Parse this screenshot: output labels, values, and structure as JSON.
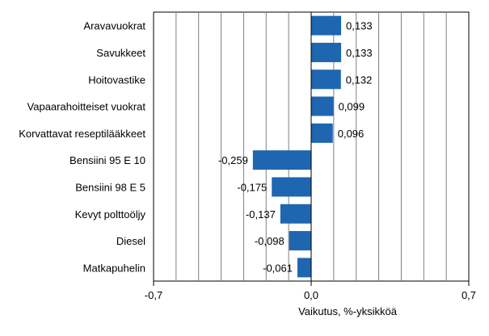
{
  "chart_data": {
    "type": "bar",
    "orientation": "horizontal",
    "categories": [
      "Aravavuokrat",
      "Savukkeet",
      "Hoitovastike",
      "Vapaarahoitteiset vuokrat",
      "Korvattavat reseptilääkkeet",
      "Bensiini 95 E 10",
      "Bensiini 98 E 5",
      "Kevyt polttoöljy",
      "Diesel",
      "Matkapuhelin"
    ],
    "values": [
      0.133,
      0.133,
      0.132,
      0.099,
      0.096,
      -0.259,
      -0.175,
      -0.137,
      -0.098,
      -0.061
    ],
    "value_labels": [
      "0,133",
      "0,133",
      "0,132",
      "0,099",
      "0,096",
      "-0,259",
      "-0,175",
      "-0,137",
      "-0,098",
      "-0,061"
    ],
    "xlim": [
      -0.7,
      0.7
    ],
    "xticks": [
      -0.7,
      0.0,
      0.7
    ],
    "xtick_labels": [
      "-0,7",
      "0,0",
      "0,7"
    ],
    "xlabel": "Vaikutus, %-yksikköä",
    "grid": "vertical",
    "bar_color": "#1f66b1"
  }
}
